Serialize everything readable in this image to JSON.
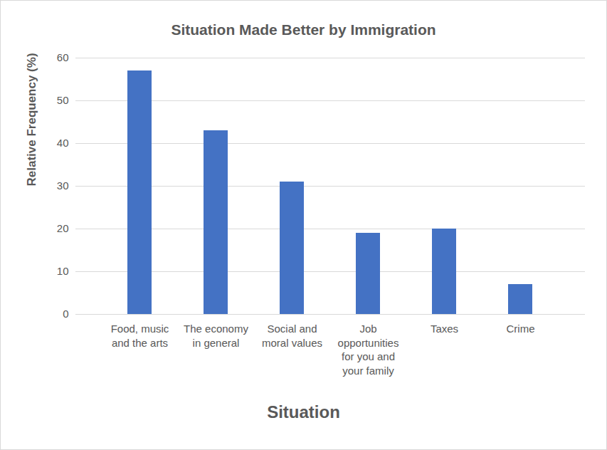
{
  "chart_data": {
    "type": "bar",
    "title": "Situation Made Better by Immigration",
    "x_label": "Situation",
    "y_label": "Relative Frequency (%)",
    "categories": [
      "Food, music and the arts",
      "The economy in general",
      "Social and moral values",
      "Job opportunities for you and your family",
      "Taxes",
      "Crime"
    ],
    "values": [
      57,
      43,
      31,
      19,
      20,
      7
    ],
    "color": "#4472c4",
    "ylim": [
      0,
      60
    ],
    "yticks": [
      0,
      10,
      20,
      30,
      40,
      50,
      60
    ],
    "grid": true
  }
}
